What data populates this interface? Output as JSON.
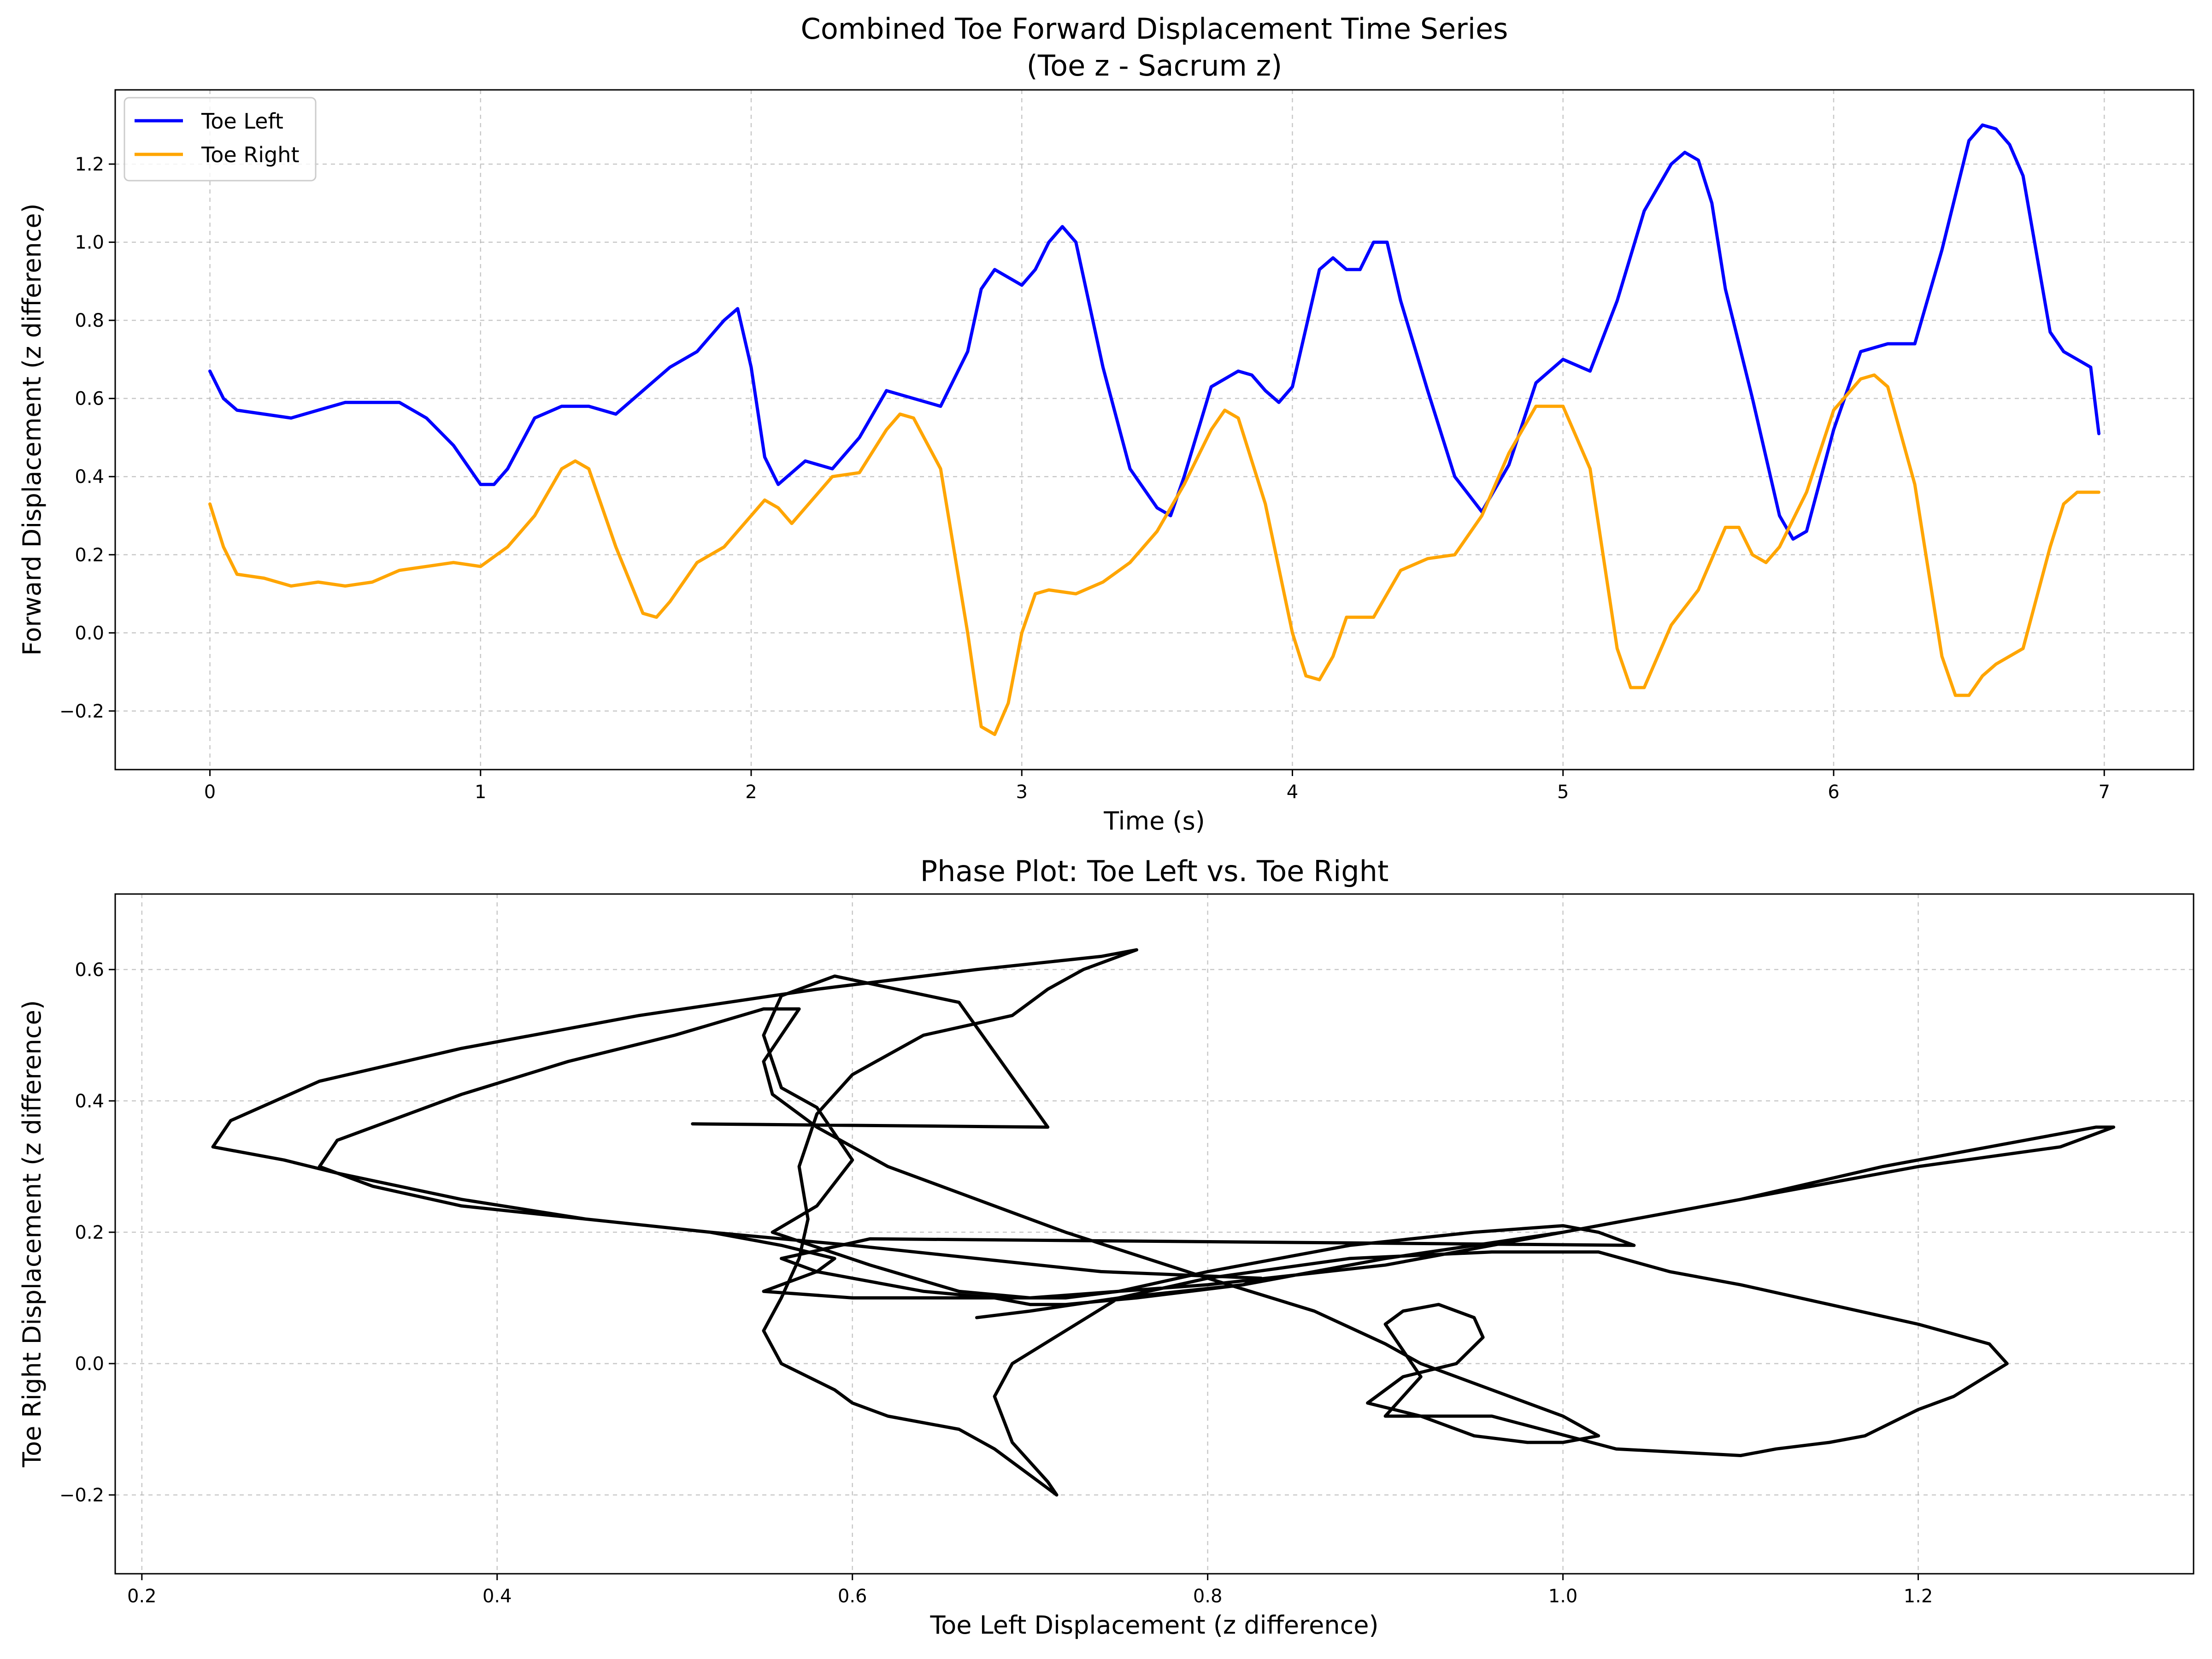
{
  "chart_data": [
    {
      "type": "line",
      "title": "Combined Toe Forward Displacement Time Series\n(Toe z - Sacrum z)",
      "title_lines": [
        "Combined Toe Forward Displacement Time Series",
        "(Toe z - Sacrum z)"
      ],
      "xlabel": "Time (s)",
      "ylabel": "Forward Displacement (z difference)",
      "xlim": [
        -0.35,
        7.33
      ],
      "ylim": [
        -0.35,
        1.39
      ],
      "xticks": [
        0,
        1,
        2,
        3,
        4,
        5,
        6,
        7
      ],
      "xtick_labels": [
        "0",
        "1",
        "2",
        "3",
        "4",
        "5",
        "6",
        "7"
      ],
      "yticks": [
        -0.2,
        0.0,
        0.2,
        0.4,
        0.6,
        0.8,
        1.0,
        1.2
      ],
      "ytick_labels": [
        "−0.2",
        "0.0",
        "0.2",
        "0.4",
        "0.6",
        "0.8",
        "1.0",
        "1.2"
      ],
      "grid": true,
      "legend": "upper left",
      "series": [
        {
          "name": "Toe Left",
          "color": "#0000ff",
          "x": [
            0,
            0.05,
            0.1,
            0.2,
            0.3,
            0.4,
            0.5,
            0.6,
            0.7,
            0.8,
            0.9,
            1.0,
            1.05,
            1.1,
            1.2,
            1.3,
            1.4,
            1.5,
            1.6,
            1.7,
            1.8,
            1.9,
            1.95,
            2.0,
            2.05,
            2.1,
            2.2,
            2.3,
            2.4,
            2.5,
            2.6,
            2.7,
            2.8,
            2.85,
            2.9,
            2.95,
            3.0,
            3.05,
            3.1,
            3.15,
            3.2,
            3.3,
            3.4,
            3.5,
            3.55,
            3.6,
            3.7,
            3.8,
            3.85,
            3.9,
            3.95,
            4.0,
            4.05,
            4.1,
            4.15,
            4.2,
            4.25,
            4.3,
            4.35,
            4.4,
            4.5,
            4.6,
            4.7,
            4.8,
            4.9,
            5.0,
            5.1,
            5.2,
            5.3,
            5.4,
            5.45,
            5.5,
            5.55,
            5.6,
            5.7,
            5.8,
            5.85,
            5.9,
            6.0,
            6.1,
            6.2,
            6.3,
            6.4,
            6.5,
            6.55,
            6.6,
            6.65,
            6.7,
            6.8,
            6.85,
            6.9,
            6.95,
            6.98
          ],
          "y": [
            0.67,
            0.6,
            0.57,
            0.56,
            0.55,
            0.57,
            0.59,
            0.59,
            0.59,
            0.55,
            0.48,
            0.38,
            0.38,
            0.42,
            0.55,
            0.58,
            0.58,
            0.56,
            0.62,
            0.68,
            0.72,
            0.8,
            0.83,
            0.68,
            0.45,
            0.38,
            0.44,
            0.42,
            0.5,
            0.62,
            0.6,
            0.58,
            0.72,
            0.88,
            0.93,
            0.91,
            0.89,
            0.93,
            1.0,
            1.04,
            1.0,
            0.68,
            0.42,
            0.32,
            0.3,
            0.4,
            0.63,
            0.67,
            0.66,
            0.62,
            0.59,
            0.63,
            0.78,
            0.93,
            0.96,
            0.93,
            0.93,
            1.0,
            1.0,
            0.85,
            0.62,
            0.4,
            0.31,
            0.43,
            0.64,
            0.7,
            0.67,
            0.85,
            1.08,
            1.2,
            1.23,
            1.21,
            1.1,
            0.88,
            0.6,
            0.3,
            0.24,
            0.26,
            0.52,
            0.72,
            0.74,
            0.74,
            0.98,
            1.26,
            1.3,
            1.29,
            1.25,
            1.17,
            0.77,
            0.72,
            0.7,
            0.68,
            0.51
          ]
        },
        {
          "name": "Toe Right",
          "color": "#ffa500",
          "x": [
            0,
            0.05,
            0.1,
            0.2,
            0.3,
            0.4,
            0.5,
            0.6,
            0.7,
            0.8,
            0.9,
            1.0,
            1.1,
            1.2,
            1.3,
            1.35,
            1.4,
            1.5,
            1.6,
            1.65,
            1.7,
            1.8,
            1.9,
            2.0,
            2.05,
            2.1,
            2.15,
            2.2,
            2.3,
            2.4,
            2.5,
            2.55,
            2.6,
            2.7,
            2.8,
            2.85,
            2.9,
            2.95,
            3.0,
            3.05,
            3.1,
            3.2,
            3.3,
            3.4,
            3.5,
            3.6,
            3.7,
            3.75,
            3.8,
            3.9,
            4.0,
            4.05,
            4.1,
            4.15,
            4.2,
            4.3,
            4.4,
            4.5,
            4.6,
            4.7,
            4.8,
            4.9,
            5.0,
            5.1,
            5.2,
            5.25,
            5.3,
            5.4,
            5.5,
            5.6,
            5.65,
            5.7,
            5.75,
            5.8,
            5.9,
            6.0,
            6.1,
            6.15,
            6.2,
            6.3,
            6.4,
            6.45,
            6.5,
            6.55,
            6.6,
            6.7,
            6.8,
            6.85,
            6.9,
            6.98
          ],
          "y": [
            0.33,
            0.22,
            0.15,
            0.14,
            0.12,
            0.13,
            0.12,
            0.13,
            0.16,
            0.17,
            0.18,
            0.17,
            0.22,
            0.3,
            0.42,
            0.44,
            0.42,
            0.22,
            0.05,
            0.04,
            0.08,
            0.18,
            0.22,
            0.3,
            0.34,
            0.32,
            0.28,
            0.32,
            0.4,
            0.41,
            0.52,
            0.56,
            0.55,
            0.42,
            0.0,
            -0.24,
            -0.26,
            -0.18,
            0.0,
            0.1,
            0.11,
            0.1,
            0.13,
            0.18,
            0.26,
            0.38,
            0.52,
            0.57,
            0.55,
            0.33,
            0.0,
            -0.11,
            -0.12,
            -0.06,
            0.04,
            0.04,
            0.16,
            0.19,
            0.2,
            0.3,
            0.46,
            0.58,
            0.58,
            0.42,
            -0.04,
            -0.14,
            -0.14,
            0.02,
            0.11,
            0.27,
            0.27,
            0.2,
            0.18,
            0.22,
            0.36,
            0.57,
            0.65,
            0.66,
            0.63,
            0.38,
            -0.06,
            -0.16,
            -0.16,
            -0.11,
            -0.08,
            -0.04,
            0.22,
            0.33,
            0.36,
            0.36
          ]
        }
      ]
    },
    {
      "type": "line",
      "title": "Phase Plot: Toe Left vs. Toe Right",
      "xlabel": "Toe Left Displacement (z difference)",
      "ylabel": "Toe Right Displacement (z difference)",
      "xlim": [
        0.185,
        1.355
      ],
      "ylim": [
        -0.32,
        0.715
      ],
      "xticks": [
        0.2,
        0.4,
        0.6,
        0.8,
        1.0,
        1.2
      ],
      "xtick_labels": [
        "0.2",
        "0.4",
        "0.6",
        "0.8",
        "1.0",
        "1.2"
      ],
      "yticks": [
        -0.2,
        0.0,
        0.2,
        0.4,
        0.6
      ],
      "ytick_labels": [
        "−0.2",
        "0.0",
        "0.2",
        "0.4",
        "0.6"
      ],
      "grid": true,
      "series": [
        {
          "color": "#000000",
          "x": [
            0.51,
            0.71,
            0.66,
            0.59,
            0.56,
            0.55,
            0.56,
            0.58,
            0.6,
            0.58,
            0.555,
            0.61,
            0.66,
            0.7,
            0.72,
            0.75,
            0.8,
            0.88,
            0.95,
            1.0,
            1.02,
            1.04,
            0.61,
            0.56,
            0.58,
            0.6,
            0.62,
            0.64,
            0.68,
            0.7,
            0.72,
            0.76,
            0.82,
            0.83,
            0.74,
            0.6,
            0.52,
            0.45,
            0.38,
            0.31,
            0.28,
            0.24,
            0.25,
            0.3,
            0.38,
            0.48,
            0.58,
            0.67,
            0.74,
            0.76,
            0.75,
            0.73,
            0.71,
            0.7,
            0.69,
            0.64,
            0.6,
            0.58,
            0.57,
            0.575,
            0.57,
            0.56,
            0.55,
            0.56,
            0.59,
            0.6,
            0.62,
            0.66,
            0.68,
            0.7,
            0.715,
            0.71,
            0.69,
            0.68,
            0.69,
            0.72,
            0.75,
            0.8,
            0.88,
            0.96,
            1.02,
            1.06,
            1.1,
            1.15,
            1.2,
            1.24,
            1.25,
            1.22,
            1.2,
            1.17,
            1.15,
            1.12,
            1.1,
            1.03,
            0.96,
            0.9,
            0.92,
            0.9,
            0.91,
            0.93,
            0.95,
            0.955,
            0.94,
            0.91,
            0.89,
            0.92,
            0.95,
            0.98,
            1.0,
            1.02,
            1.0,
            0.96,
            0.92,
            0.9,
            0.86,
            0.8,
            0.72,
            0.66,
            0.62,
            0.58,
            0.555,
            0.55,
            0.56,
            0.57,
            0.55,
            0.5,
            0.44,
            0.38,
            0.31,
            0.3,
            0.33,
            0.38,
            0.45,
            0.52,
            0.56,
            0.59,
            0.58,
            0.56,
            0.55,
            0.6,
            0.64,
            0.7,
            0.8,
            0.9,
            1.0,
            1.1,
            1.2,
            1.28,
            1.3,
            1.31,
            1.3,
            1.28,
            1.24,
            1.18,
            1.1,
            1.0,
            0.9,
            0.82,
            0.75,
            0.7,
            0.67
          ],
          "y": [
            0.365,
            0.36,
            0.55,
            0.59,
            0.56,
            0.5,
            0.42,
            0.39,
            0.31,
            0.24,
            0.2,
            0.15,
            0.11,
            0.1,
            0.1,
            0.11,
            0.14,
            0.18,
            0.2,
            0.21,
            0.2,
            0.18,
            0.19,
            0.16,
            0.14,
            0.13,
            0.12,
            0.11,
            0.1,
            0.09,
            0.09,
            0.1,
            0.12,
            0.13,
            0.14,
            0.18,
            0.2,
            0.22,
            0.25,
            0.29,
            0.31,
            0.33,
            0.37,
            0.43,
            0.48,
            0.53,
            0.57,
            0.6,
            0.62,
            0.63,
            0.62,
            0.6,
            0.57,
            0.55,
            0.53,
            0.5,
            0.44,
            0.38,
            0.3,
            0.22,
            0.16,
            0.1,
            0.05,
            0.0,
            -0.04,
            -0.06,
            -0.08,
            -0.1,
            -0.13,
            -0.17,
            -0.2,
            -0.18,
            -0.12,
            -0.05,
            0.0,
            0.05,
            0.1,
            0.13,
            0.16,
            0.17,
            0.17,
            0.14,
            0.12,
            0.09,
            0.06,
            0.03,
            0.0,
            -0.05,
            -0.07,
            -0.11,
            -0.12,
            -0.13,
            -0.14,
            -0.13,
            -0.08,
            -0.08,
            -0.02,
            0.06,
            0.08,
            0.09,
            0.07,
            0.04,
            0.0,
            -0.02,
            -0.06,
            -0.08,
            -0.11,
            -0.12,
            -0.12,
            -0.11,
            -0.08,
            -0.04,
            0.0,
            0.03,
            0.08,
            0.13,
            0.2,
            0.26,
            0.3,
            0.36,
            0.41,
            0.46,
            0.5,
            0.54,
            0.54,
            0.5,
            0.46,
            0.41,
            0.34,
            0.3,
            0.27,
            0.24,
            0.22,
            0.2,
            0.18,
            0.16,
            0.14,
            0.12,
            0.11,
            0.1,
            0.1,
            0.1,
            0.12,
            0.15,
            0.2,
            0.25,
            0.3,
            0.33,
            0.35,
            0.36,
            0.36,
            0.35,
            0.33,
            0.3,
            0.25,
            0.2,
            0.16,
            0.12,
            0.1,
            0.08,
            0.07
          ]
        }
      ]
    }
  ],
  "ui": {
    "legend": [
      "Toe Left",
      "Toe Right"
    ]
  }
}
